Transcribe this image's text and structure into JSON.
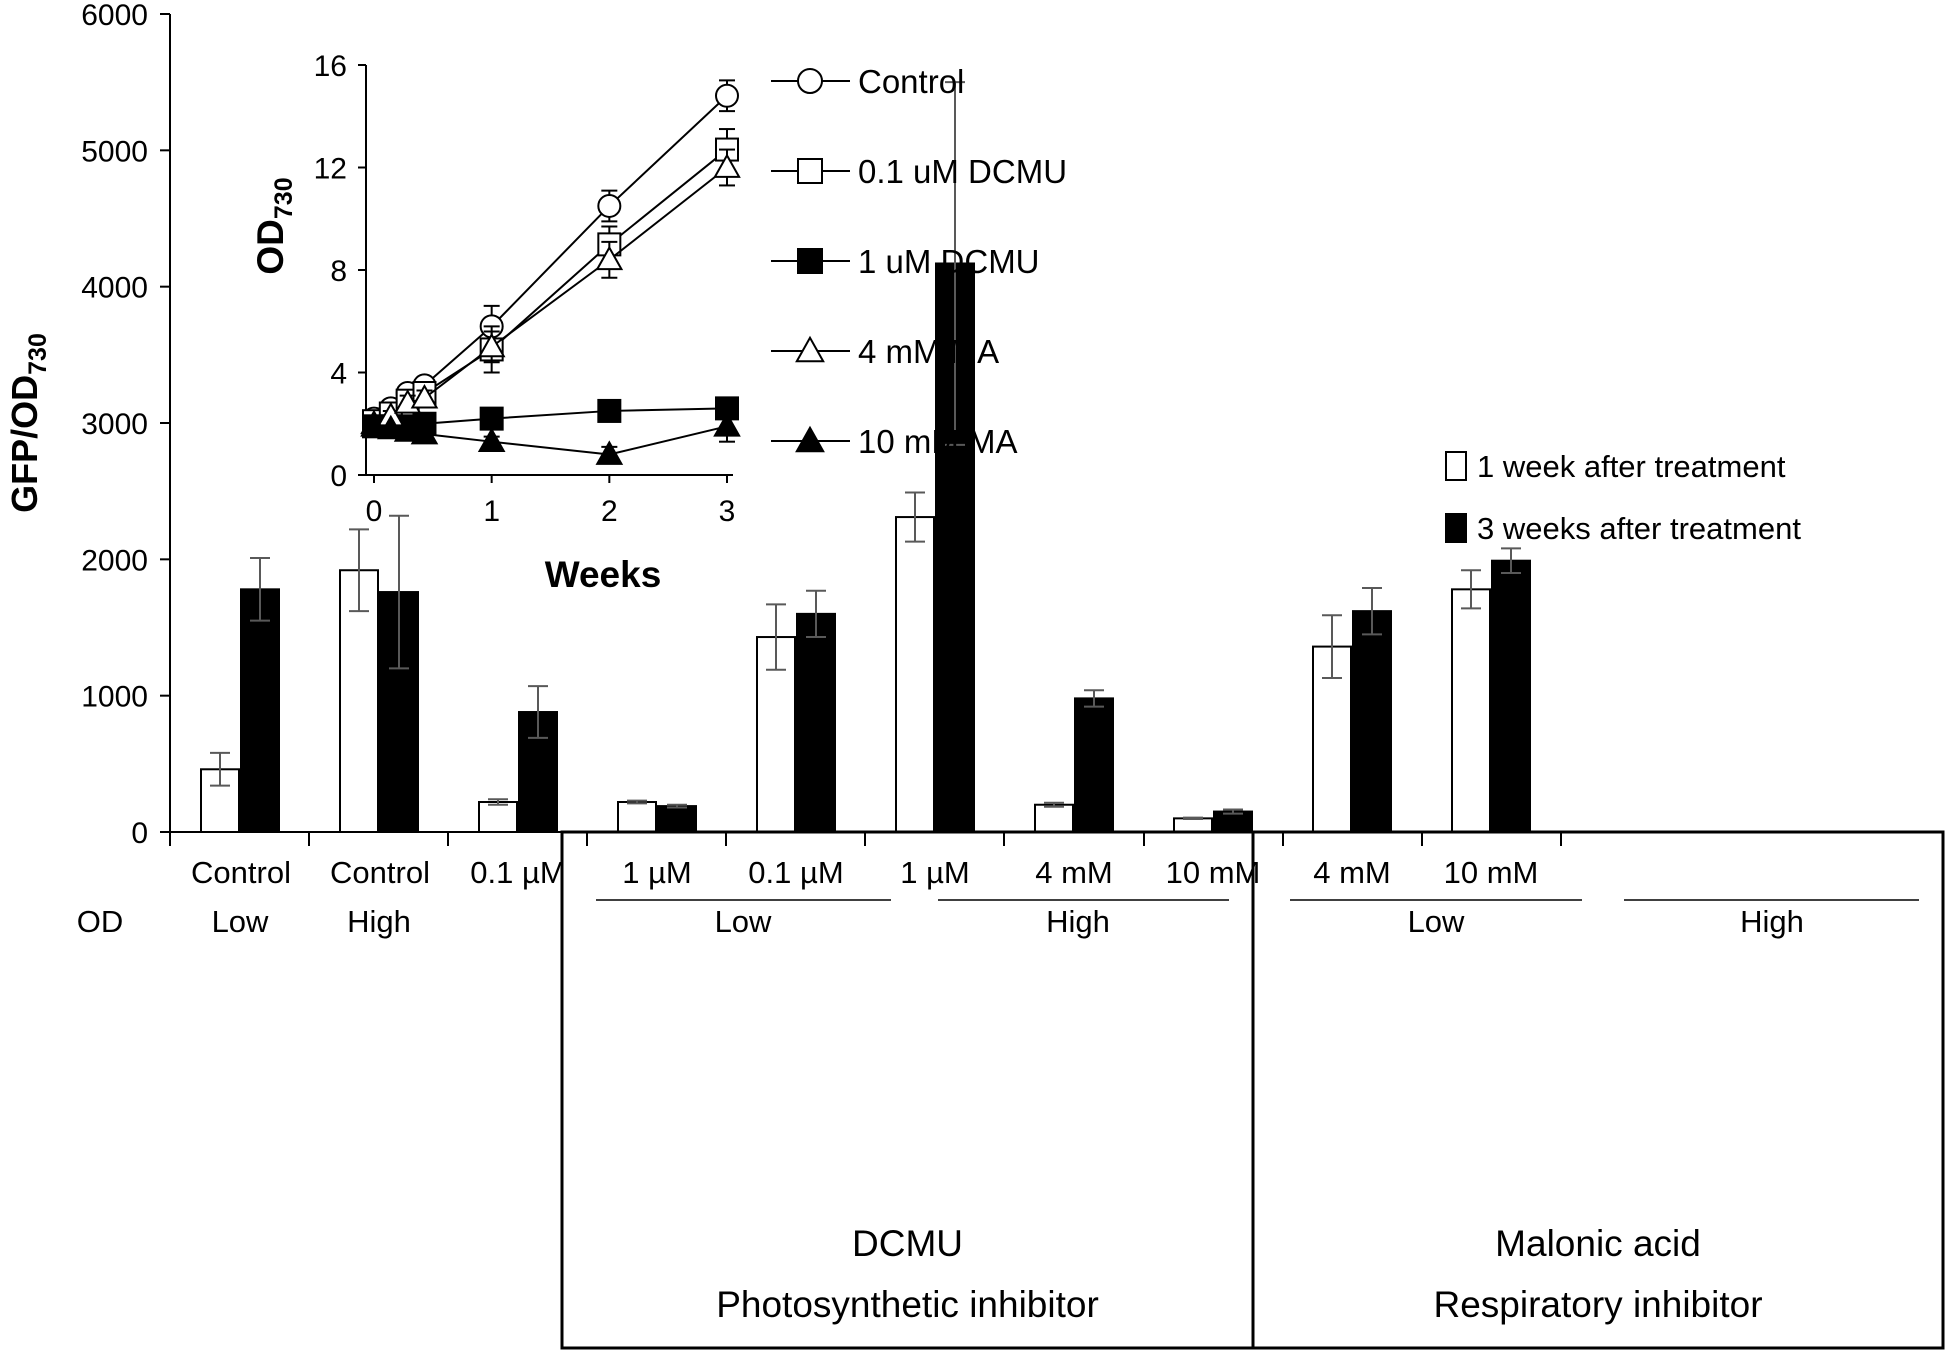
{
  "chart_data": [
    {
      "type": "bar",
      "ylabel": "GFP/OD",
      "ylabel_sub": "730",
      "ylim": [
        0,
        6000
      ],
      "yticks": [
        0,
        1000,
        2000,
        3000,
        4000,
        5000,
        6000
      ],
      "categories": [
        {
          "line1": "Control",
          "line2": "Low"
        },
        {
          "line1": "Control",
          "line2": "High"
        },
        {
          "line1": "0.1 µM"
        },
        {
          "line1": "1 µM"
        },
        {
          "line1": "0.1 µM"
        },
        {
          "line1": "1 µM"
        },
        {
          "line1": "4 mM"
        },
        {
          "line1": "10 mM"
        },
        {
          "line1": "4 mM"
        },
        {
          "line1": "10 mM"
        }
      ],
      "od_label": "OD",
      "subgroups": [
        {
          "label": "Low"
        },
        {
          "label": "High"
        },
        {
          "label": "Low"
        },
        {
          "label": "High"
        }
      ],
      "inhibitor_groups": [
        {
          "line1": "DCMU",
          "line2": "Photosynthetic inhibitor"
        },
        {
          "line1": "Malonic acid",
          "line2": "Respiratory inhibitor"
        }
      ],
      "series": [
        {
          "name": "1 week after treatment",
          "fill": "#ffffff",
          "values": [
            460,
            1920,
            220,
            220,
            1430,
            2310,
            200,
            100,
            1360,
            1780
          ],
          "errors": [
            120,
            300,
            20,
            10,
            240,
            180,
            15,
            5,
            230,
            140
          ]
        },
        {
          "name": "3 weeks after treatment",
          "fill": "#000000",
          "values": [
            1780,
            1760,
            880,
            190,
            1600,
            4170,
            980,
            150,
            1620,
            1990
          ],
          "errors": [
            230,
            560,
            190,
            10,
            170,
            1330,
            60,
            15,
            170,
            90
          ]
        }
      ]
    },
    {
      "type": "line",
      "title": "inset",
      "xlabel": "Weeks",
      "ylabel": "OD",
      "ylabel_sub": "730",
      "xlim": [
        0,
        3
      ],
      "ylim": [
        0,
        16
      ],
      "xticks": [
        0,
        1,
        2,
        3
      ],
      "yticks": [
        0,
        4,
        8,
        12,
        16
      ],
      "x": [
        0,
        0.143,
        0.286,
        0.429,
        1,
        2,
        3
      ],
      "series": [
        {
          "name": "Control",
          "marker": "circle",
          "filled": false,
          "values": [
            2.2,
            2.6,
            3.2,
            3.5,
            5.8,
            10.5,
            14.8
          ],
          "errors": [
            0.2,
            0.3,
            0.3,
            0.3,
            0.8,
            0.6,
            0.6
          ]
        },
        {
          "name": "0.1 uM DCMU",
          "marker": "square",
          "filled": false,
          "values": [
            2.1,
            2.4,
            2.9,
            3.2,
            4.9,
            9.0,
            12.7
          ],
          "errors": [
            0.2,
            0.2,
            0.3,
            0.3,
            0.9,
            0.7,
            0.8
          ]
        },
        {
          "name": "1 uM DCMU",
          "marker": "square",
          "filled": true,
          "values": [
            1.9,
            1.9,
            1.9,
            2.0,
            2.2,
            2.5,
            2.6
          ],
          "errors": [
            0.1,
            0.1,
            0.1,
            0.1,
            0.2,
            0.2,
            0.3
          ]
        },
        {
          "name": "4 mM MA",
          "marker": "triangle",
          "filled": false,
          "values": [
            2.0,
            2.3,
            2.8,
            3.0,
            5.0,
            8.4,
            12.0
          ],
          "errors": [
            0.2,
            0.2,
            0.3,
            0.3,
            0.6,
            0.7,
            0.7
          ]
        },
        {
          "name": "10 mM MA",
          "marker": "triangle",
          "filled": true,
          "values": [
            1.9,
            1.8,
            1.7,
            1.6,
            1.3,
            0.8,
            1.9
          ],
          "errors": [
            0.1,
            0.1,
            0.1,
            0.1,
            0.2,
            0.3,
            0.6
          ]
        }
      ]
    }
  ]
}
